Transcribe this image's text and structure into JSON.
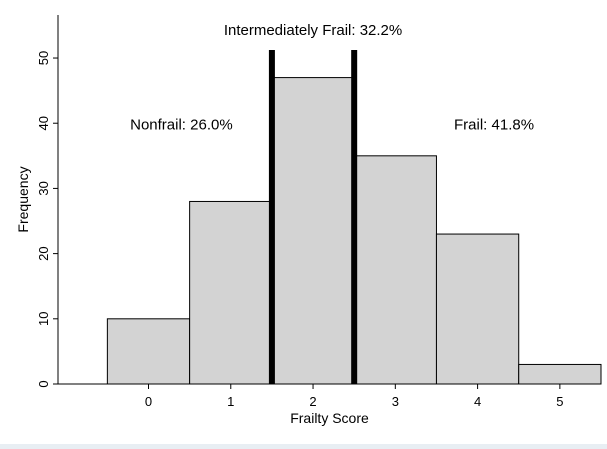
{
  "chart_data": {
    "type": "bar",
    "categories": [
      "0",
      "1",
      "2",
      "3",
      "4",
      "5"
    ],
    "x": [
      0,
      1,
      2,
      3,
      4,
      5
    ],
    "values": [
      10,
      28,
      47,
      35,
      23,
      3
    ],
    "xlabel": "Frailty Score",
    "ylabel": "Frequency",
    "xlim": [
      -1.1,
      5.5
    ],
    "ylim": [
      0,
      56.6
    ],
    "yticks": [
      0,
      10,
      20,
      30,
      40,
      50
    ],
    "grid": false,
    "bar_color": "#d3d3d3",
    "cutoffs": [
      1.5,
      2.5
    ],
    "annotations": [
      {
        "text": "Intermediately Frail: 32.2%",
        "x": 2.0,
        "y": 53.5
      },
      {
        "text": "Nonfrail: 26.0%",
        "x": 0.4,
        "y": 39
      },
      {
        "text": "Frail: 41.8%",
        "x": 4.2,
        "y": 39
      }
    ]
  }
}
